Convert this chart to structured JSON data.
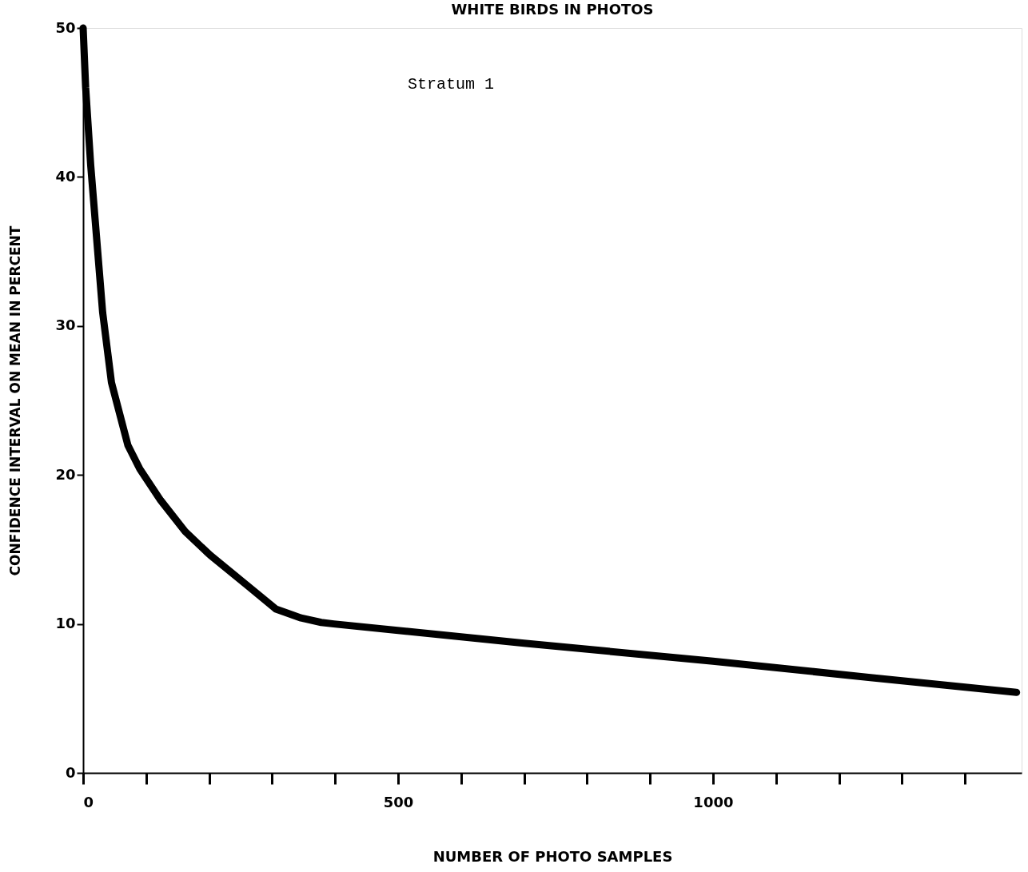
{
  "chart_data": {
    "type": "line",
    "title": "WHITE BIRDS IN PHOTOS",
    "xlabel": "NUMBER OF PHOTO SAMPLES",
    "ylabel": "CONFIDENCE INTERVAL ON MEAN IN PERCENT",
    "annotations": [
      "Stratum 1"
    ],
    "x": [
      0,
      4,
      12,
      31,
      45,
      71,
      90,
      123,
      162,
      202,
      260,
      306,
      346,
      378,
      398,
      700,
      1000,
      1250,
      1482
    ],
    "series": [
      {
        "color": "#000000",
        "values": [
          50,
          46,
          40.8,
          30.9,
          26.2,
          22,
          20.4,
          18.3,
          16.2,
          14.6,
          12.6,
          11,
          10.4,
          10.1,
          10.0,
          8.7,
          7.5,
          6.4,
          5.4
        ]
      }
    ],
    "xlim": [
      0,
      1490
    ],
    "ylim": [
      0,
      50
    ],
    "xticks": [
      0,
      {
        "value": 100,
        "label": null
      },
      {
        "value": 200,
        "label": null
      },
      {
        "value": 300,
        "label": null
      },
      {
        "value": 400,
        "label": null
      },
      500,
      {
        "value": 600,
        "label": null
      },
      {
        "value": 700,
        "label": null
      },
      {
        "value": 800,
        "label": null
      },
      {
        "value": 900,
        "label": null
      },
      1000,
      {
        "value": 1100,
        "label": null
      },
      {
        "value": 1200,
        "label": null
      },
      {
        "value": 1300,
        "label": null
      },
      {
        "value": 1400,
        "label": null
      }
    ],
    "yticks": [
      0,
      10,
      20,
      30,
      40,
      50
    ],
    "grid": false,
    "marker": "none",
    "line_style": "solid"
  }
}
